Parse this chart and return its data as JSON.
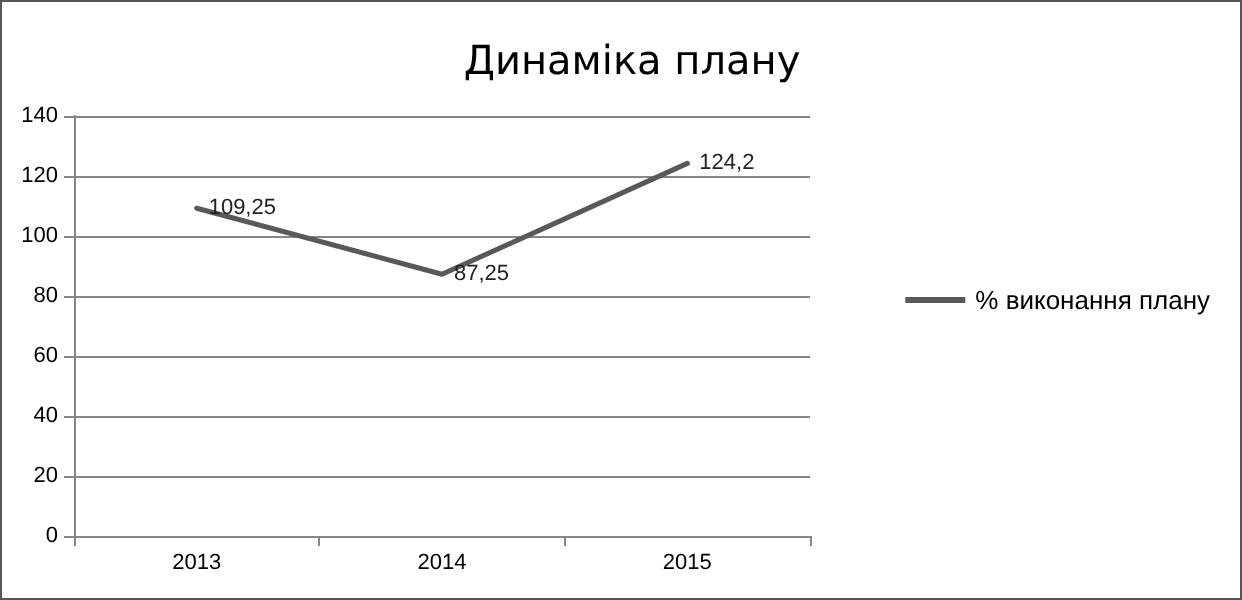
{
  "chart_data": {
    "type": "line",
    "title": "Динаміка плану",
    "categories": [
      "2013",
      "2014",
      "2015"
    ],
    "series": [
      {
        "name": "% виконання плану",
        "color": "#595959",
        "values": [
          109.25,
          87.25,
          124.2
        ],
        "value_labels": [
          "109,25",
          "87,25",
          "124,2"
        ]
      }
    ],
    "ylim": [
      0,
      140
    ],
    "yticks": [
      0,
      20,
      40,
      60,
      80,
      100,
      120,
      140
    ],
    "grid": "y",
    "legend": "right",
    "marker": "none"
  }
}
